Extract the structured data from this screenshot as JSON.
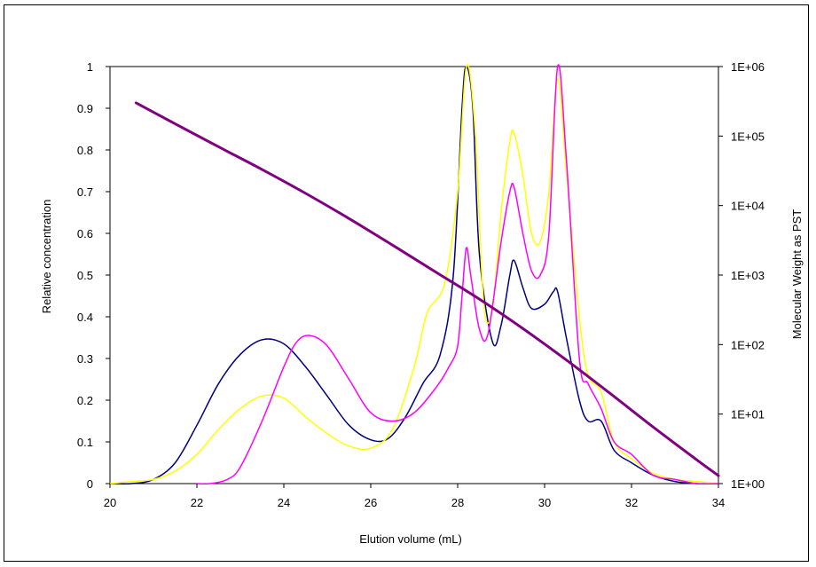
{
  "chart_data": {
    "type": "line",
    "xlabel": "Elution volume (mL)",
    "ylabel": "Relative concentration",
    "y2label": "Molecular Weight as PST",
    "xlim": [
      20,
      34
    ],
    "ylim": [
      0,
      1
    ],
    "y2lim": [
      1,
      1000000
    ],
    "y2scale": "log",
    "x_ticks": [
      "20",
      "22",
      "24",
      "26",
      "28",
      "30",
      "32",
      "34"
    ],
    "y_ticks": [
      "0",
      "0.1",
      "0.2",
      "0.3",
      "0.4",
      "0.5",
      "0.6",
      "0.7",
      "0.8",
      "0.9",
      "1"
    ],
    "y2_ticks": [
      "1E+00",
      "1E+01",
      "1E+02",
      "1E+03",
      "1E+04",
      "1E+05",
      "1E+06"
    ],
    "grid": false,
    "legend": "none",
    "series": [
      {
        "color": "#000080",
        "axis": "left",
        "x": [
          20.0,
          20.5,
          21.0,
          21.5,
          22.0,
          22.5,
          23.0,
          23.5,
          24.0,
          24.5,
          25.0,
          25.5,
          26.0,
          26.4,
          26.8,
          27.2,
          27.6,
          27.9,
          28.1,
          28.2,
          28.35,
          28.5,
          28.8,
          29.0,
          29.2,
          29.3,
          29.5,
          29.7,
          30.0,
          30.2,
          30.3,
          30.5,
          30.8,
          31.0,
          31.3,
          31.6,
          32.0,
          32.5,
          33.0,
          33.5,
          34.0
        ],
        "values": [
          0.0,
          0.0,
          0.01,
          0.05,
          0.14,
          0.24,
          0.31,
          0.345,
          0.335,
          0.28,
          0.21,
          0.14,
          0.105,
          0.108,
          0.16,
          0.24,
          0.31,
          0.5,
          0.9,
          1.0,
          0.9,
          0.55,
          0.34,
          0.38,
          0.5,
          0.535,
          0.47,
          0.42,
          0.43,
          0.46,
          0.46,
          0.35,
          0.2,
          0.15,
          0.15,
          0.08,
          0.05,
          0.02,
          0.005,
          0.0,
          0.0
        ]
      },
      {
        "color": "#FFFF00",
        "axis": "left",
        "x": [
          20.0,
          20.5,
          21.0,
          21.5,
          22.0,
          22.5,
          23.0,
          23.5,
          24.0,
          24.5,
          25.0,
          25.5,
          26.0,
          26.5,
          27.0,
          27.3,
          27.7,
          28.0,
          28.2,
          28.4,
          28.6,
          28.8,
          29.0,
          29.2,
          29.3,
          29.5,
          29.7,
          29.9,
          30.1,
          30.3,
          30.5,
          30.8,
          31.0,
          31.3,
          31.6,
          32.0,
          32.5,
          33.0,
          33.5,
          34.0
        ],
        "values": [
          0.0,
          0.005,
          0.01,
          0.03,
          0.07,
          0.13,
          0.18,
          0.21,
          0.205,
          0.16,
          0.12,
          0.09,
          0.085,
          0.13,
          0.28,
          0.41,
          0.48,
          0.7,
          1.0,
          0.85,
          0.43,
          0.42,
          0.65,
          0.82,
          0.84,
          0.74,
          0.6,
          0.58,
          0.7,
          0.97,
          0.75,
          0.4,
          0.26,
          0.22,
          0.1,
          0.06,
          0.025,
          0.01,
          0.005,
          0.0
        ]
      },
      {
        "color": "#FF00FF",
        "axis": "left",
        "x": [
          22.0,
          22.3,
          22.7,
          23.0,
          23.5,
          24.0,
          24.3,
          24.6,
          25.0,
          25.5,
          26.0,
          26.5,
          27.0,
          27.5,
          27.8,
          28.0,
          28.1,
          28.2,
          28.3,
          28.5,
          28.7,
          29.0,
          29.2,
          29.3,
          29.5,
          29.7,
          29.9,
          30.1,
          30.3,
          30.5,
          30.8,
          31.0,
          31.3,
          31.6,
          32.0,
          32.5,
          33.0,
          33.5,
          34.0
        ],
        "values": [
          0.0,
          0.0,
          0.01,
          0.04,
          0.15,
          0.28,
          0.34,
          0.355,
          0.33,
          0.25,
          0.17,
          0.15,
          0.17,
          0.23,
          0.28,
          0.33,
          0.45,
          0.565,
          0.5,
          0.37,
          0.36,
          0.58,
          0.7,
          0.71,
          0.6,
          0.51,
          0.5,
          0.6,
          1.0,
          0.78,
          0.3,
          0.24,
          0.18,
          0.1,
          0.07,
          0.02,
          0.01,
          0.0,
          0.0
        ]
      },
      {
        "color": "#800080",
        "axis": "right",
        "x": [
          20.6,
          21.5,
          22.5,
          23.5,
          24.5,
          25.5,
          26.5,
          27.5,
          28.5,
          29.5,
          30.5,
          31.5,
          32.5,
          33.5,
          34.0
        ],
        "values": [
          300000,
          150000,
          70000,
          33000,
          15000,
          6500,
          2700,
          1100,
          450,
          170,
          60,
          20,
          6.5,
          2.2,
          1.3
        ]
      }
    ]
  }
}
